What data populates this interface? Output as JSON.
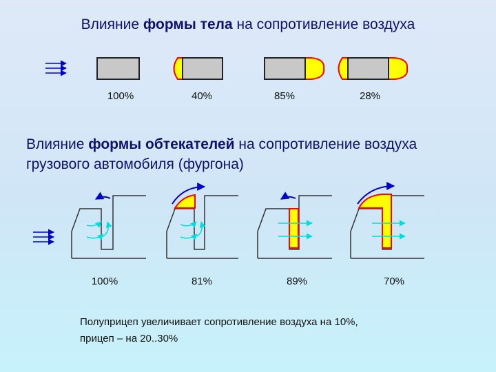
{
  "section1": {
    "title_prefix": "Влияние ",
    "title_bold": "формы тела",
    "title_suffix": " на сопротивление воздуха",
    "shapes": [
      {
        "label": "100%"
      },
      {
        "label": "40%"
      },
      {
        "label": "85%"
      },
      {
        "label": "28%"
      }
    ]
  },
  "section2": {
    "title_prefix": "Влияние ",
    "title_bold": "формы обтекателей",
    "title_suffix": " на сопротивление воздуха грузового автомобиля (фургона)",
    "trucks": [
      {
        "label": "100%"
      },
      {
        "label": "81%"
      },
      {
        "label": "89%"
      },
      {
        "label": "70%"
      }
    ]
  },
  "note": {
    "line1": "Полуприцеп увеличивает сопротивление воздуха на 10%,",
    "line2": "прицеп – на 20..30%"
  },
  "colors": {
    "body_fill": "#c8c8c8",
    "fairing_fill": "#ffff00",
    "fairing_stroke": "#ff0000",
    "flow_arrow": "#0000cc",
    "flow_line": "#00dddd"
  }
}
